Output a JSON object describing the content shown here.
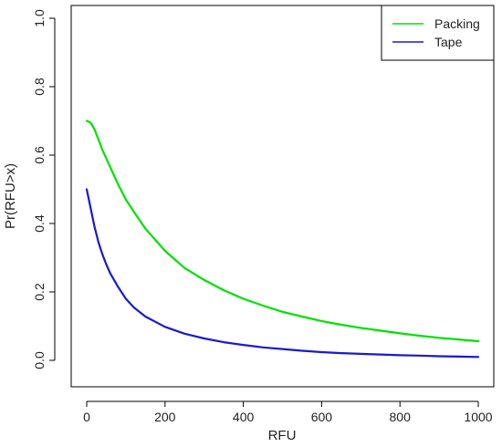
{
  "chart_data": {
    "type": "line",
    "title": "",
    "xlabel": "RFU",
    "ylabel": "Pr(RFU>x)",
    "xlim": [
      0,
      1000
    ],
    "ylim": [
      0,
      1.0
    ],
    "xticks": [
      0,
      200,
      400,
      600,
      800,
      1000
    ],
    "yticks": [
      0.0,
      0.2,
      0.4,
      0.6,
      0.8,
      1.0
    ],
    "xtick_labels": [
      "0",
      "200",
      "400",
      "600",
      "800",
      "1000"
    ],
    "ytick_labels": [
      "0.0",
      "0.2",
      "0.4",
      "0.6",
      "0.8",
      "1.0"
    ],
    "grid": false,
    "legend_position": "top-right",
    "series": [
      {
        "name": "Packing",
        "color": "#00e000",
        "x": [
          0,
          10,
          20,
          30,
          40,
          50,
          60,
          80,
          100,
          120,
          150,
          200,
          250,
          300,
          350,
          400,
          450,
          500,
          550,
          600,
          650,
          700,
          750,
          800,
          850,
          900,
          950,
          1000
        ],
        "y": [
          0.7,
          0.695,
          0.675,
          0.645,
          0.615,
          0.59,
          0.565,
          0.515,
          0.47,
          0.435,
          0.385,
          0.32,
          0.27,
          0.235,
          0.205,
          0.18,
          0.16,
          0.142,
          0.128,
          0.115,
          0.104,
          0.095,
          0.087,
          0.079,
          0.072,
          0.066,
          0.061,
          0.056
        ]
      },
      {
        "name": "Tape",
        "color": "#1a1acc",
        "x": [
          0,
          10,
          20,
          30,
          40,
          50,
          60,
          80,
          100,
          120,
          150,
          200,
          250,
          300,
          350,
          400,
          450,
          500,
          550,
          600,
          650,
          700,
          750,
          800,
          850,
          900,
          950,
          1000
        ],
        "y": [
          0.5,
          0.445,
          0.39,
          0.345,
          0.31,
          0.28,
          0.255,
          0.215,
          0.18,
          0.155,
          0.128,
          0.098,
          0.078,
          0.064,
          0.053,
          0.045,
          0.038,
          0.033,
          0.028,
          0.024,
          0.021,
          0.019,
          0.017,
          0.015,
          0.014,
          0.012,
          0.011,
          0.01
        ]
      }
    ]
  }
}
